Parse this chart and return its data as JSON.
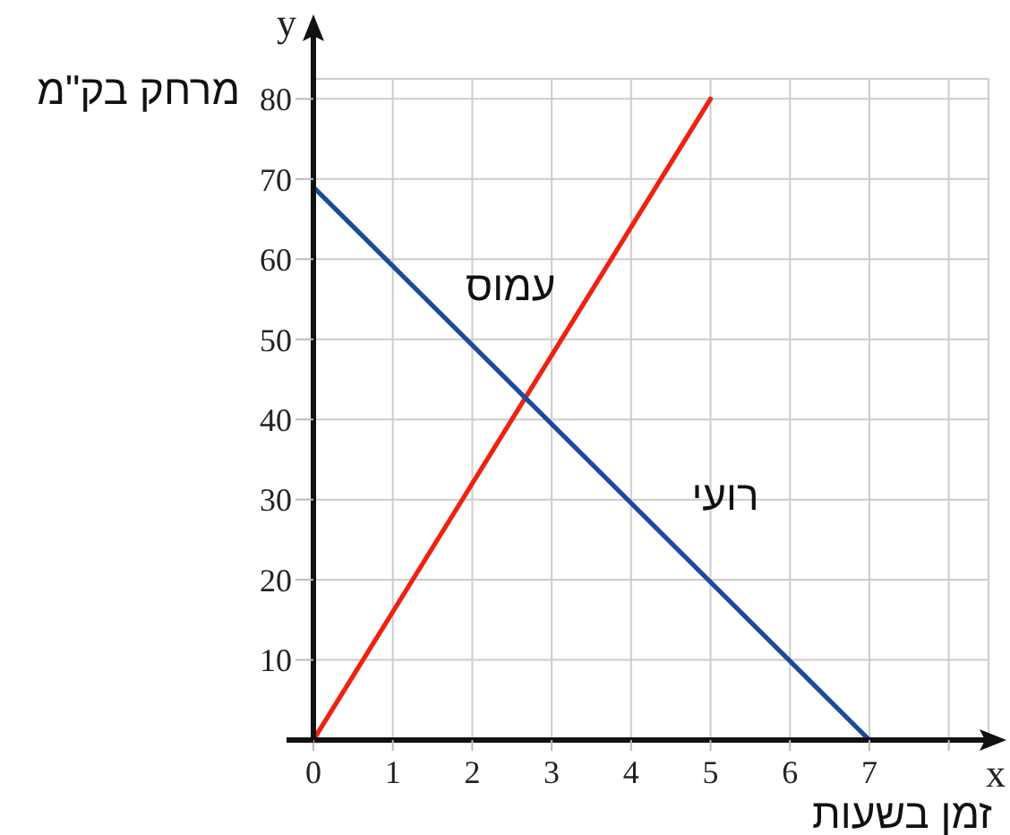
{
  "chart_data": {
    "type": "line",
    "xlabel": "זמן בשעות",
    "ylabel": "מרחק בק\"מ",
    "annotations": [
      "x",
      "y"
    ],
    "xlim": [
      0,
      8.5
    ],
    "ylim": [
      0,
      82.5
    ],
    "xticks": [
      0,
      1,
      2,
      3,
      4,
      5,
      6,
      7,
      {
        "value": 8,
        "label": null
      }
    ],
    "yticks": [
      10,
      20,
      30,
      40,
      50,
      60,
      70,
      80
    ],
    "grid": true,
    "series": [
      {
        "name": "עמוס",
        "color": "#ee2211",
        "x": [
          0,
          5
        ],
        "values": [
          0,
          80
        ]
      },
      {
        "name": "רועי",
        "color": "#1c4a9c",
        "x": [
          0,
          7
        ],
        "values": [
          69,
          0
        ]
      }
    ]
  }
}
